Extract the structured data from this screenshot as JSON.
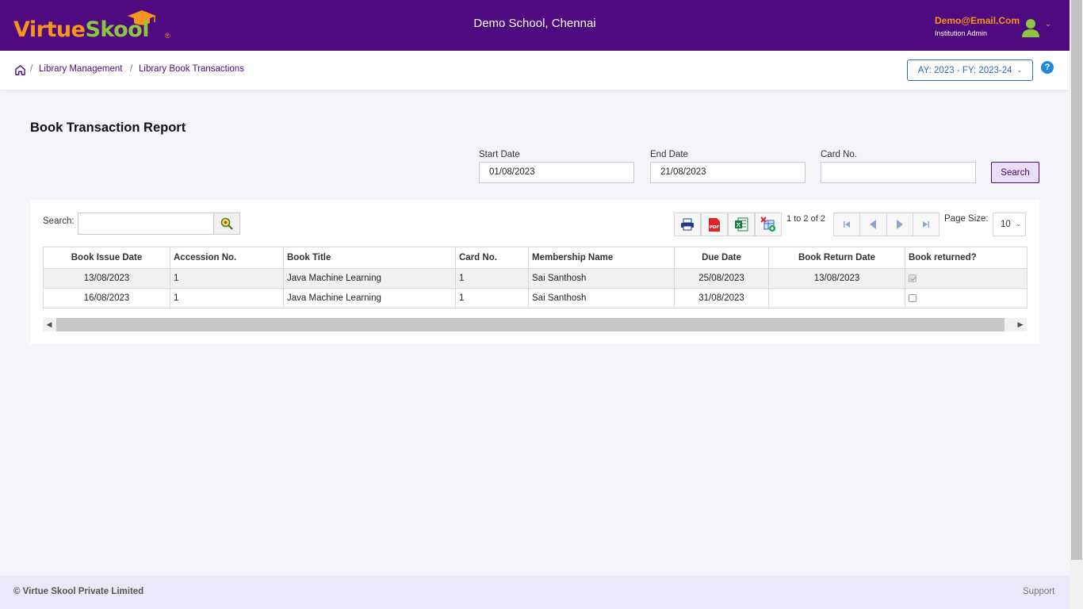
{
  "header": {
    "logo_text_1": "Virtue",
    "logo_text_2": "Skool",
    "logo_reg": "®",
    "school_name": "Demo School, Chennai",
    "user_email": "Demo@Email.Com",
    "user_role": "Institution Admin",
    "user_chevron": "⌄"
  },
  "breadcrumb": {
    "items": [
      "Library Management",
      "Library Book Transactions"
    ],
    "separator": "/"
  },
  "academic_year": {
    "label": "AY: 2023 - FY: 2023-24",
    "chevron": "⌄"
  },
  "help_label": "?",
  "page": {
    "title": "Book Transaction Report"
  },
  "filters": {
    "start_date_label": "Start Date",
    "start_date_value": "01/08/2023",
    "end_date_label": "End Date",
    "end_date_value": "21/08/2023",
    "card_no_label": "Card No.",
    "card_no_value": "",
    "search_button": "Search"
  },
  "grid": {
    "search_label": "Search:",
    "search_value": "",
    "pager_text": "1 to 2 of 2",
    "page_size_label": "Page Size:",
    "page_size_value": "10",
    "columns": [
      "Book Issue Date",
      "Accession No.",
      "Book Title",
      "Card No.",
      "Membership Name",
      "Due Date",
      "Book Return Date",
      "Book returned?"
    ],
    "rows": [
      {
        "issue_date": "13/08/2023",
        "accession_no": "1",
        "title": "Java Machine Learning",
        "card_no": "1",
        "member": "Sai Santhosh",
        "due_date": "25/08/2023",
        "return_date": "13/08/2023",
        "returned": true
      },
      {
        "issue_date": "16/08/2023",
        "accession_no": "1",
        "title": "Java Machine Learning",
        "card_no": "1",
        "member": "Sai Santhosh",
        "due_date": "31/08/2023",
        "return_date": "",
        "returned": false
      }
    ]
  },
  "footer": {
    "copyright": "© Virtue Skool Private Limited",
    "support": "Support"
  },
  "colors": {
    "header_bg": "#4e0a7e",
    "logo_orange": "#f7941d",
    "logo_green": "#8dc63f",
    "link_purple": "#4e0a7e",
    "footer_bg": "#ece7fa"
  },
  "icons": {
    "home": "home-icon",
    "avatar": "user-avatar-icon",
    "search": "magnifier-icon",
    "print": "printer-icon",
    "pdf": "pdf-icon",
    "excel": "excel-icon",
    "clear_filters": "clear-filter-icon",
    "first": "first-page-icon",
    "prev": "previous-page-icon",
    "next": "next-page-icon",
    "last": "last-page-icon"
  }
}
